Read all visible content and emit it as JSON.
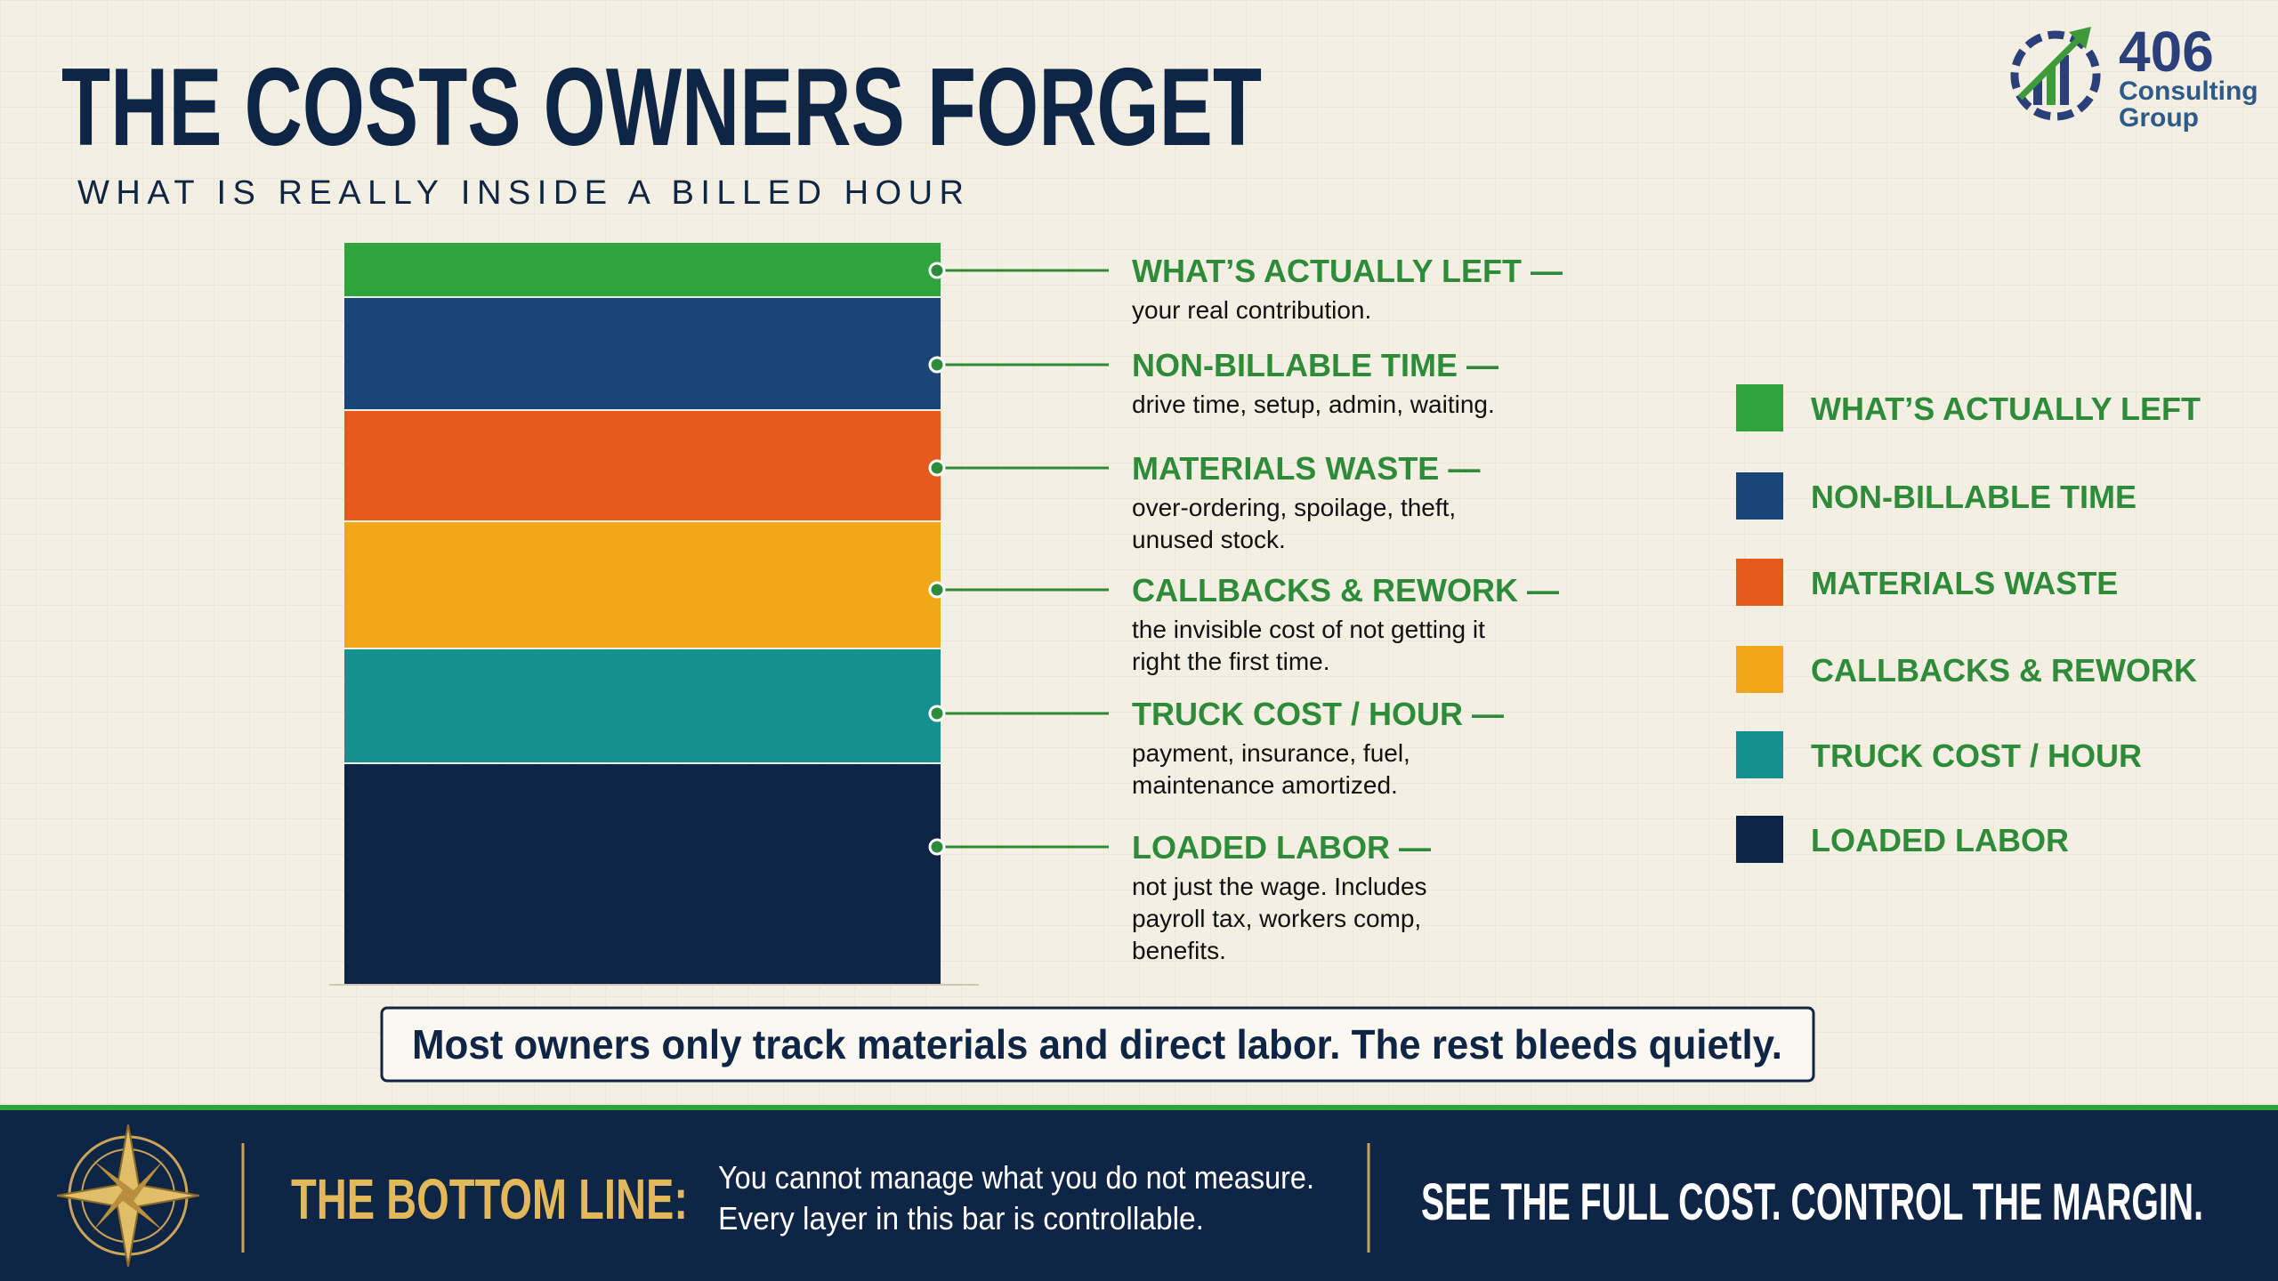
{
  "header": {
    "title": "THE COSTS OWNERS FORGET",
    "subtitle": "WHAT IS REALLY INSIDE A BILLED HOUR"
  },
  "logo": {
    "number": "406",
    "line1": "Consulting",
    "line2": "Group"
  },
  "layers": [
    {
      "label": "WHAT’S ACTUALLY LEFT —",
      "description": [
        "your real contribution."
      ],
      "color": "#2fa33c"
    },
    {
      "label": "NON-BILLABLE TIME —",
      "description": [
        "drive time, setup, admin, waiting."
      ],
      "color": "#1a4677"
    },
    {
      "label": "MATERIALS WASTE —",
      "description": [
        "over-ordering, spoilage, theft,",
        "unused stock."
      ],
      "color": "#e65a1e"
    },
    {
      "label": "CALLBACKS & REWORK —",
      "description": [
        "the invisible cost of not getting it",
        "right the first time."
      ],
      "color": "#f0a818"
    },
    {
      "label": "TRUCK COST / HOUR —",
      "description": [
        "payment, insurance, fuel,",
        "maintenance amortized."
      ],
      "color": "#14908f"
    },
    {
      "label": "LOADED LABOR —",
      "description": [
        "not just the wage. Includes",
        "payroll tax, workers comp,",
        "benefits."
      ],
      "color": "#0e2447"
    }
  ],
  "legend": [
    "WHAT’S ACTUALLY LEFT",
    "NON-BILLABLE TIME",
    "MATERIALS WASTE",
    "CALLBACKS & REWORK",
    "TRUCK COST / HOUR",
    "LOADED LABOR"
  ],
  "callout": "Most owners only track materials and direct labor. The rest bleeds quietly.",
  "footer": {
    "label": "THE BOTTOM LINE:",
    "text": [
      "You cannot manage what you do not measure.",
      "Every layer in this bar is controllable."
    ],
    "tagline": "SEE THE FULL COST. CONTROL THE MARGIN."
  }
}
